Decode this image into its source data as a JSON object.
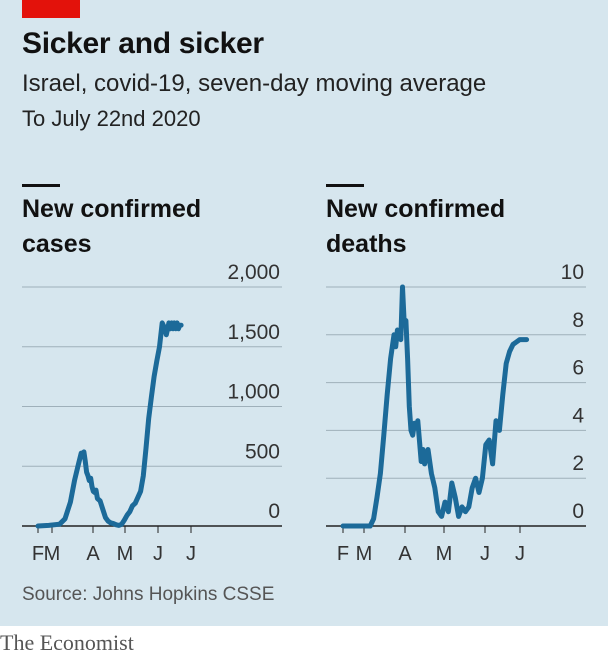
{
  "header": {
    "title": "Sicker and sicker",
    "subtitle": "Israel, covid-19, seven-day moving average",
    "date_note": "To July 22nd 2020"
  },
  "colors": {
    "accent": "#e3120b",
    "line": "#1c6a99",
    "background": "#d6e6ee",
    "grid": "#9fb0ba"
  },
  "chart_data": [
    {
      "type": "line",
      "title": "New confirmed cases",
      "x_tick_labels": [
        "F",
        "M",
        "A",
        "M",
        "J",
        "J"
      ],
      "y_ticks": [
        "2,000",
        "1,500",
        "1,000",
        "500",
        "0"
      ],
      "ylim": [
        0,
        2000
      ],
      "series": [
        {
          "x": [
            0,
            0.4,
            0.8,
            1.0,
            1.2,
            1.35,
            1.5,
            1.6,
            1.65,
            1.7,
            1.75,
            1.8,
            1.85,
            1.9,
            1.95,
            2.0,
            2.05,
            2.1,
            2.15,
            2.2,
            2.3,
            2.4,
            2.5,
            2.6,
            2.7,
            2.8,
            2.9,
            3.0,
            3.1,
            3.2,
            3.3,
            3.4,
            3.5,
            3.6,
            3.7,
            3.8,
            3.9,
            4.0,
            4.1,
            4.2,
            4.3,
            4.4,
            4.5,
            4.6,
            4.7,
            4.75,
            4.8,
            4.85,
            4.9,
            4.95,
            5.0,
            5.05,
            5.1,
            5.15,
            5.2,
            5.25,
            5.3
          ],
          "values": [
            0,
            5,
            15,
            60,
            200,
            380,
            520,
            610,
            580,
            620,
            540,
            450,
            420,
            380,
            400,
            330,
            290,
            280,
            300,
            230,
            210,
            140,
            70,
            40,
            25,
            20,
            10,
            5,
            15,
            50,
            90,
            120,
            170,
            190,
            240,
            290,
            420,
            650,
            900,
            1080,
            1250,
            1380,
            1500,
            1700,
            1650,
            1600,
            1650,
            1700,
            1650,
            1700,
            1650,
            1700,
            1650,
            1700,
            1650,
            1680,
            1680
          ]
        }
      ]
    },
    {
      "type": "line",
      "title": "New confirmed deaths",
      "x_tick_labels": [
        "F",
        "M",
        "A",
        "M",
        "J",
        "J"
      ],
      "y_ticks": [
        "10",
        "8",
        "6",
        "4",
        "2",
        "0"
      ],
      "ylim": [
        0,
        10
      ],
      "series": [
        {
          "x": [
            0,
            0.3,
            0.6,
            0.8,
            0.9,
            1.0,
            1.1,
            1.2,
            1.3,
            1.4,
            1.5,
            1.55,
            1.6,
            1.7,
            1.75,
            1.8,
            1.85,
            1.9,
            1.95,
            2.0,
            2.05,
            2.1,
            2.15,
            2.2,
            2.3,
            2.35,
            2.4,
            2.5,
            2.6,
            2.7,
            2.8,
            2.9,
            3.0,
            3.1,
            3.2,
            3.3,
            3.4,
            3.5,
            3.6,
            3.7,
            3.8,
            3.9,
            4.0,
            4.1,
            4.2,
            4.3,
            4.4,
            4.5,
            4.6,
            4.7,
            4.8,
            4.9,
            5.0,
            5.1,
            5.2,
            5.3,
            5.4
          ],
          "values": [
            0,
            0,
            0,
            0,
            0.3,
            1.2,
            2.2,
            3.8,
            5.5,
            7.0,
            8.0,
            7.5,
            8.2,
            7.8,
            10.0,
            8.5,
            8.6,
            7.0,
            5.0,
            4.0,
            3.8,
            4.3,
            4.1,
            4.4,
            2.7,
            3.2,
            2.6,
            3.2,
            2.2,
            1.6,
            0.6,
            0.4,
            1.0,
            0.6,
            1.8,
            1.2,
            0.4,
            0.8,
            0.6,
            0.8,
            1.6,
            2.0,
            1.4,
            2.0,
            3.4,
            3.6,
            2.6,
            4.4,
            4.0,
            5.5,
            6.8,
            7.3,
            7.6,
            7.7,
            7.8,
            7.8,
            7.8
          ]
        }
      ]
    }
  ],
  "source": "Source: Johns Hopkins CSSE",
  "footer": "The Economist"
}
